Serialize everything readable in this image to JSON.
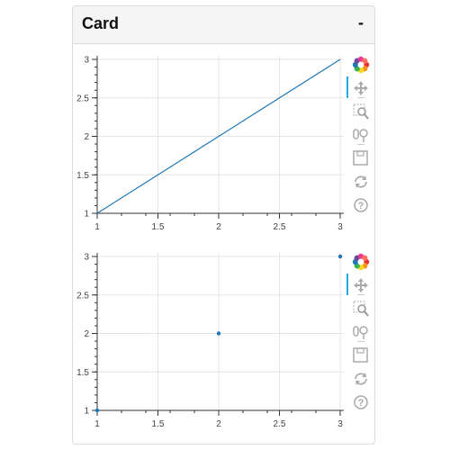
{
  "card": {
    "title": "Card",
    "collapse_label": "-"
  },
  "toolbar_icons": [
    "bokeh-logo-icon",
    "pan-icon",
    "box-zoom-icon",
    "wheel-zoom-icon",
    "save-icon",
    "reset-icon",
    "help-icon"
  ],
  "colors": {
    "series": "#1f77b4",
    "active_tool": "#26aae1",
    "grid": "#e5e5e5"
  },
  "chart_data": [
    {
      "type": "line",
      "x": [
        1,
        2,
        3
      ],
      "y": [
        1,
        2,
        3
      ],
      "xlim": [
        1,
        3
      ],
      "ylim": [
        1,
        3
      ],
      "xticks": [
        "1",
        "1.5",
        "2",
        "2.5",
        "3"
      ],
      "yticks": [
        "1",
        "1.5",
        "2",
        "2.5",
        "3"
      ],
      "grid": true
    },
    {
      "type": "scatter",
      "x": [
        1,
        2,
        3
      ],
      "y": [
        1,
        2,
        3
      ],
      "xlim": [
        1,
        3
      ],
      "ylim": [
        1,
        3
      ],
      "xticks": [
        "1",
        "1.5",
        "2",
        "2.5",
        "3"
      ],
      "yticks": [
        "1",
        "1.5",
        "2",
        "2.5",
        "3"
      ],
      "grid": true
    }
  ]
}
